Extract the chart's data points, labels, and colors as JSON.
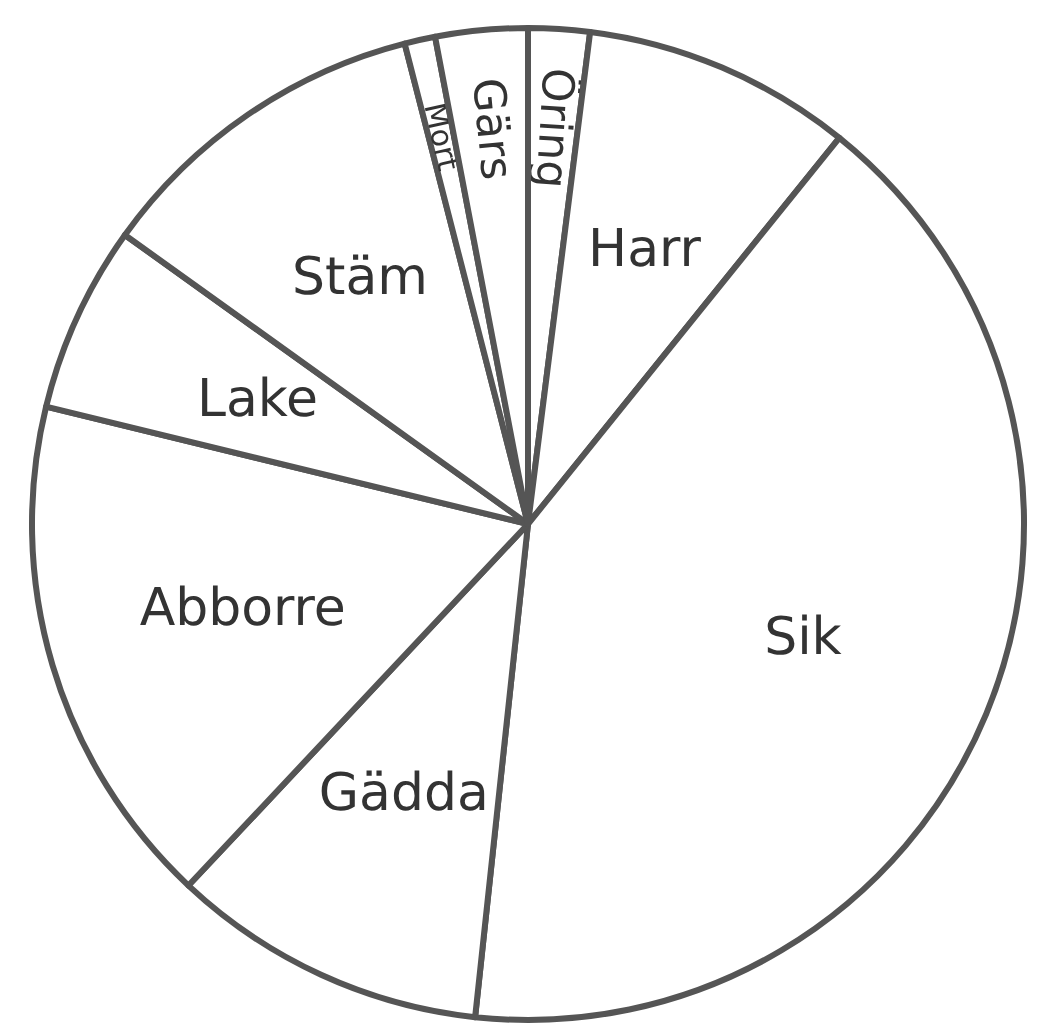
{
  "chart_data": {
    "type": "pie",
    "categories": [
      "Öring",
      "Harr",
      "Sik",
      "Gädda",
      "Abborre",
      "Lake",
      "Stäm",
      "Mört",
      "Gärs"
    ],
    "values": [
      2.0,
      8.8,
      40.9,
      10.3,
      16.8,
      6.1,
      11.1,
      1.0,
      3.0
    ],
    "colors": [
      "#ffffff",
      "#ffffff",
      "#ffffff",
      "#ffffff",
      "#ffffff",
      "#ffffff",
      "#ffffff",
      "#ffffff",
      "#ffffff"
    ]
  }
}
